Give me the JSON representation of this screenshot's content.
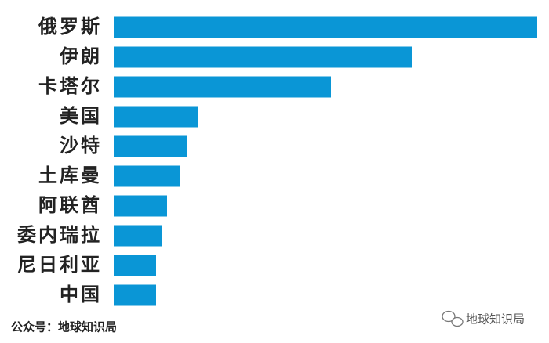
{
  "chart_data": {
    "type": "bar",
    "orientation": "horizontal",
    "categories": [
      "俄罗斯",
      "伊朗",
      "卡塔尔",
      "美国",
      "沙特",
      "土库曼",
      "阿联酋",
      "委内瑞拉",
      "尼日利亚",
      "中国"
    ],
    "values": [
      540,
      380,
      277,
      108,
      94,
      85,
      68,
      62,
      54,
      54
    ],
    "color": "#0a96d6",
    "xlim": [
      0,
      540
    ]
  },
  "footer": {
    "source": "公众号：地球知识局",
    "watermark": "地球知识局"
  }
}
